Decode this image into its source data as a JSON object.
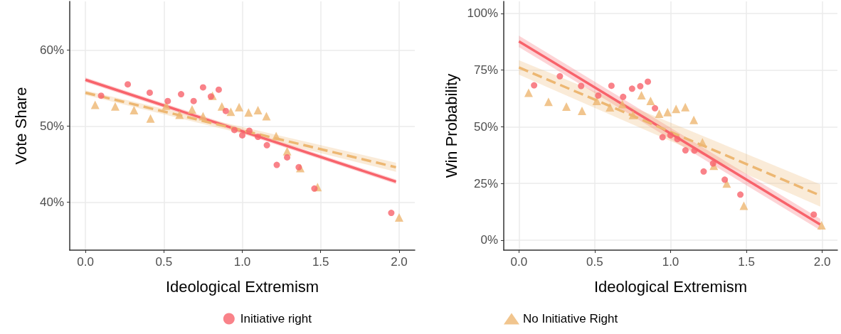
{
  "chart_data": [
    {
      "type": "scatter",
      "xlabel": "Ideological Extremism",
      "ylabel": "Vote Share",
      "xlim": [
        -0.1,
        2.1
      ],
      "ylim": [
        33.7,
        66.4
      ],
      "xticks": [
        {
          "value": 0,
          "label": "0.0"
        },
        {
          "value": 0.5,
          "label": "0.5"
        },
        {
          "value": 1,
          "label": "1.0"
        },
        {
          "value": 1.5,
          "label": "1.5"
        },
        {
          "value": 2,
          "label": "2.0"
        }
      ],
      "yticks": [
        {
          "value": 40,
          "label": "40%"
        },
        {
          "value": 50,
          "label": "50%"
        },
        {
          "value": 60,
          "label": "60%"
        }
      ],
      "grid": true,
      "legend": "bottom",
      "series": [
        {
          "name": "Initiative right",
          "type": "scatter",
          "marker": "circle",
          "color": "#f8636b",
          "x": [
            0.1,
            0.27,
            0.41,
            0.525,
            0.61,
            0.69,
            0.75,
            0.8,
            0.85,
            0.895,
            0.95,
            1.0,
            1.045,
            1.1,
            1.157,
            1.22,
            1.286,
            1.36,
            1.46,
            1.95
          ],
          "values": [
            54.0,
            55.5,
            54.4,
            53.3,
            54.2,
            53.3,
            55.1,
            53.9,
            54.8,
            52.0,
            49.5,
            48.8,
            49.4,
            48.6,
            47.5,
            44.9,
            45.9,
            44.6,
            41.8,
            38.6
          ]
        },
        {
          "name": "No Initiative Right",
          "type": "scatter",
          "marker": "triangle",
          "color": "#edb772",
          "x": [
            0.062,
            0.19,
            0.31,
            0.415,
            0.515,
            0.6,
            0.68,
            0.75,
            0.81,
            0.87,
            0.927,
            0.98,
            1.04,
            1.1,
            1.154,
            1.216,
            1.286,
            1.37,
            1.48,
            2.0
          ],
          "values": [
            52.8,
            52.6,
            52.1,
            51.0,
            52.7,
            51.5,
            52.2,
            51.3,
            54.0,
            52.6,
            51.9,
            52.5,
            51.8,
            52.1,
            51.3,
            48.7,
            46.7,
            44.5,
            42.0,
            38.0
          ]
        },
        {
          "type": "line",
          "line_style": "solid",
          "color": "#f8636b",
          "x": [
            0,
            1.98
          ],
          "values": [
            56.1,
            42.7
          ],
          "lower": [
            55.8,
            42.4
          ],
          "upper": [
            56.4,
            43.0
          ]
        },
        {
          "type": "line",
          "line_style": "dashed",
          "color": "#edb772",
          "x": [
            0,
            1.98
          ],
          "values": [
            54.4,
            44.6
          ],
          "lower": [
            54.1,
            44.0
          ],
          "upper": [
            54.7,
            45.2
          ]
        }
      ]
    },
    {
      "type": "scatter",
      "xlabel": "Ideological Extremism",
      "ylabel": "Win Probability",
      "xlim": [
        -0.1,
        2.1
      ],
      "ylim": [
        -4.4,
        105.3
      ],
      "xticks": [
        {
          "value": 0,
          "label": "0.0"
        },
        {
          "value": 0.5,
          "label": "0.5"
        },
        {
          "value": 1,
          "label": "1.0"
        },
        {
          "value": 1.5,
          "label": "1.5"
        },
        {
          "value": 2,
          "label": "2.0"
        }
      ],
      "yticks": [
        {
          "value": 0,
          "label": "0%"
        },
        {
          "value": 25,
          "label": "25%"
        },
        {
          "value": 50,
          "label": "50%"
        },
        {
          "value": 75,
          "label": "75%"
        },
        {
          "value": 100,
          "label": "100%"
        }
      ],
      "grid": true,
      "series": [
        {
          "type": "scatter",
          "marker": "circle",
          "color": "#f8636b",
          "x": [
            0.1,
            0.27,
            0.41,
            0.523,
            0.61,
            0.687,
            0.746,
            0.8,
            0.85,
            0.897,
            0.947,
            0.999,
            1.045,
            1.098,
            1.157,
            1.218,
            1.28,
            1.357,
            1.46,
            1.944
          ],
          "values": [
            68.3,
            72.3,
            68.0,
            63.8,
            68.1,
            63.2,
            66.8,
            67.9,
            69.9,
            58.2,
            45.4,
            46.3,
            44.6,
            39.6,
            39.5,
            30.3,
            33.8,
            26.7,
            20.1,
            11.3
          ]
        },
        {
          "type": "scatter",
          "marker": "triangle",
          "color": "#edb772",
          "x": [
            0.064,
            0.195,
            0.313,
            0.416,
            0.513,
            0.6,
            0.682,
            0.752,
            0.808,
            0.868,
            0.925,
            0.98,
            1.036,
            1.097,
            1.153,
            1.21,
            1.285,
            1.37,
            1.483,
            1.995
          ],
          "values": [
            65.0,
            61.0,
            58.9,
            57.0,
            61.4,
            58.6,
            60.0,
            55.2,
            63.9,
            61.4,
            55.8,
            56.5,
            57.9,
            58.7,
            53.0,
            43.2,
            32.8,
            25.0,
            15.2,
            6.6
          ]
        },
        {
          "type": "line",
          "line_style": "solid",
          "color": "#f8636b",
          "x": [
            0,
            1.987
          ],
          "values": [
            87.7,
            6.9
          ],
          "lower": [
            85.2,
            4.4
          ],
          "upper": [
            90.2,
            9.4
          ]
        },
        {
          "type": "line",
          "line_style": "dashed",
          "color": "#edb772",
          "x": [
            0,
            1.987
          ],
          "values": [
            76.2,
            19.7
          ],
          "lower": [
            73.0,
            14.8
          ],
          "upper": [
            79.4,
            24.6
          ]
        }
      ]
    }
  ]
}
